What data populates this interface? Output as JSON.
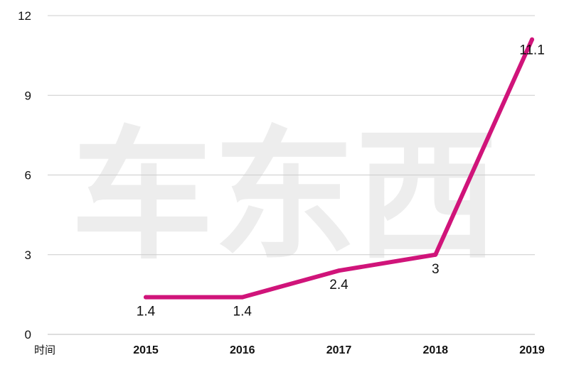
{
  "watermark": {
    "text": "车东西"
  },
  "chart_data": {
    "type": "line",
    "title": "",
    "xlabel": "时间",
    "ylabel": "",
    "categories": [
      "2015",
      "2016",
      "2017",
      "2018",
      "2019"
    ],
    "series": [
      {
        "values": [
          1.4,
          1.4,
          2.4,
          3,
          11.1
        ],
        "data_labels": [
          "1.4",
          "1.4",
          "2.4",
          "3",
          "11.1"
        ],
        "color": "#d0147a"
      }
    ],
    "ylim": [
      0,
      12
    ],
    "y_ticks": [
      0,
      3,
      6,
      9,
      12
    ],
    "grid": true,
    "legend": "none"
  }
}
